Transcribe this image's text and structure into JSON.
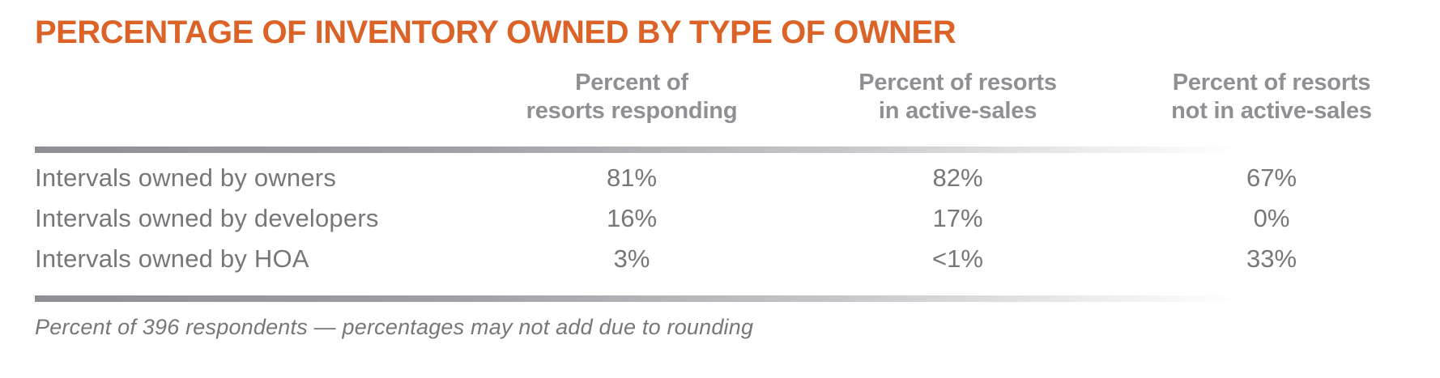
{
  "colors": {
    "title_orange": "#DC6328",
    "header_gray": "#8E9093",
    "body_gray": "#76777A",
    "rule_gradient_start": "#8D8F94",
    "rule_gradient_end": "#FFFFFF",
    "background": "#FFFFFF"
  },
  "chart_data": {
    "type": "table",
    "title": "PERCENTAGE OF INVENTORY OWNED BY TYPE OF OWNER",
    "columns": [
      "Percent of\nresorts responding",
      "Percent of resorts\nin active-sales",
      "Percent of resorts\nnot in active-sales"
    ],
    "rows": [
      {
        "label": "Intervals owned by owners",
        "values": [
          "81%",
          "82%",
          "67%"
        ]
      },
      {
        "label": "Intervals owned by developers",
        "values": [
          "16%",
          "17%",
          "0%"
        ]
      },
      {
        "label": "Intervals owned by HOA",
        "values": [
          "3%",
          "<1%",
          "33%"
        ]
      }
    ],
    "footnote": "Percent of 396 respondents — percentages may not add due to rounding"
  }
}
